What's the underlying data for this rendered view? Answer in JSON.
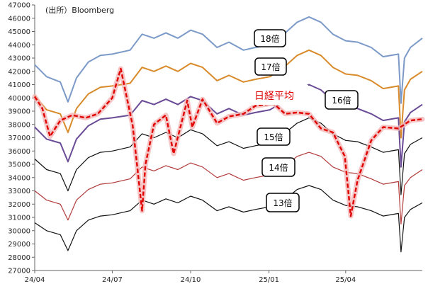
{
  "source": "(出所）Bloomberg",
  "chart_data": {
    "type": "line",
    "title": "",
    "xlabel": "",
    "ylabel": "",
    "ylim": [
      27000,
      47000
    ],
    "yticks": [
      27000,
      28000,
      29000,
      30000,
      31000,
      32000,
      33000,
      34000,
      35000,
      36000,
      37000,
      38000,
      39000,
      40000,
      41000,
      42000,
      43000,
      44000,
      45000,
      46000,
      47000
    ],
    "xlim": [
      "2024-04-01",
      "2025-06-30"
    ],
    "xticks": [
      {
        "label": "24/04",
        "date": "2024-04-01"
      },
      {
        "label": "24/07",
        "date": "2024-07-01"
      },
      {
        "label": "24/10",
        "date": "2024-10-01"
      },
      {
        "label": "25/01",
        "date": "2025-01-01"
      },
      {
        "label": "25/04",
        "date": "2025-04-01"
      }
    ],
    "grid": false,
    "series": [
      {
        "name": "18倍",
        "color": "#7b9ac8",
        "width": 2,
        "x": [
          "2024-04-01",
          "2024-04-15",
          "2024-05-01",
          "2024-05-10",
          "2024-05-20",
          "2024-06-03",
          "2024-06-17",
          "2024-07-01",
          "2024-07-22",
          "2024-08-05",
          "2024-08-19",
          "2024-09-02",
          "2024-09-16",
          "2024-10-01",
          "2024-10-15",
          "2024-11-01",
          "2024-11-15",
          "2024-12-02",
          "2024-12-16",
          "2025-01-02",
          "2025-01-15",
          "2025-02-03",
          "2025-02-17",
          "2025-03-03",
          "2025-03-17",
          "2025-04-01",
          "2025-04-15",
          "2025-05-01",
          "2025-05-15",
          "2025-06-02",
          "2025-06-05",
          "2025-06-09",
          "2025-06-16",
          "2025-06-30"
        ],
        "y": [
          42500,
          41600,
          41200,
          39700,
          41500,
          42700,
          43200,
          43300,
          43600,
          44800,
          44500,
          44900,
          44500,
          45100,
          44800,
          43800,
          44200,
          43600,
          43800,
          44000,
          44600,
          45700,
          46100,
          45700,
          44800,
          44300,
          44200,
          43800,
          43100,
          43300,
          39600,
          43000,
          43800,
          44500
        ]
      },
      {
        "name": "17倍",
        "color": "#d98b2b",
        "width": 2,
        "x": [
          "2024-04-01",
          "2024-04-15",
          "2024-05-01",
          "2024-05-10",
          "2024-05-20",
          "2024-06-03",
          "2024-06-17",
          "2024-07-01",
          "2024-07-22",
          "2024-08-05",
          "2024-08-19",
          "2024-09-02",
          "2024-09-16",
          "2024-10-01",
          "2024-10-15",
          "2024-11-01",
          "2024-11-15",
          "2024-12-02",
          "2024-12-16",
          "2025-01-02",
          "2025-01-15",
          "2025-02-03",
          "2025-02-17",
          "2025-03-03",
          "2025-03-17",
          "2025-04-01",
          "2025-04-15",
          "2025-05-01",
          "2025-05-15",
          "2025-06-02",
          "2025-06-05",
          "2025-06-09",
          "2025-06-16",
          "2025-06-30"
        ],
        "y": [
          40200,
          39100,
          38800,
          37400,
          39200,
          40300,
          40800,
          40900,
          41100,
          42300,
          42000,
          42400,
          42000,
          42600,
          42300,
          41300,
          41700,
          41200,
          41400,
          41600,
          42100,
          43200,
          43600,
          43200,
          42300,
          41800,
          41700,
          41300,
          40700,
          40900,
          37000,
          40600,
          41400,
          42000
        ]
      },
      {
        "name": "16倍",
        "color": "#6a4b96",
        "width": 2,
        "x": [
          "2024-04-01",
          "2024-04-15",
          "2024-05-01",
          "2024-05-10",
          "2024-05-20",
          "2024-06-03",
          "2024-06-17",
          "2024-07-01",
          "2024-07-22",
          "2024-08-05",
          "2024-08-19",
          "2024-09-02",
          "2024-09-16",
          "2024-10-01",
          "2024-10-15",
          "2024-11-01",
          "2024-11-15",
          "2024-12-02",
          "2024-12-16",
          "2025-01-02",
          "2025-01-15",
          "2025-02-03",
          "2025-02-17",
          "2025-03-03",
          "2025-03-17",
          "2025-04-01",
          "2025-04-15",
          "2025-05-01",
          "2025-05-15",
          "2025-06-02",
          "2025-06-05",
          "2025-06-09",
          "2025-06-16",
          "2025-06-30"
        ],
        "y": [
          37800,
          36900,
          36600,
          35200,
          36900,
          37900,
          38400,
          38500,
          38700,
          39800,
          39500,
          39900,
          39500,
          40100,
          39800,
          38800,
          39200,
          38700,
          38900,
          39100,
          39600,
          40600,
          41000,
          40600,
          39800,
          39300,
          39200,
          38800,
          38300,
          38500,
          34800,
          38200,
          38900,
          39500
        ]
      },
      {
        "name": "15倍",
        "color": "#111111",
        "width": 1.2,
        "x": [
          "2024-04-01",
          "2024-04-15",
          "2024-05-01",
          "2024-05-10",
          "2024-05-20",
          "2024-06-03",
          "2024-06-17",
          "2024-07-01",
          "2024-07-22",
          "2024-08-05",
          "2024-08-19",
          "2024-09-02",
          "2024-09-16",
          "2024-10-01",
          "2024-10-15",
          "2024-11-01",
          "2024-11-15",
          "2024-12-02",
          "2024-12-16",
          "2025-01-02",
          "2025-01-15",
          "2025-02-03",
          "2025-02-17",
          "2025-03-03",
          "2025-03-17",
          "2025-04-01",
          "2025-04-15",
          "2025-05-01",
          "2025-05-15",
          "2025-06-02",
          "2025-06-05",
          "2025-06-09",
          "2025-06-16",
          "2025-06-30"
        ],
        "y": [
          35400,
          34600,
          34300,
          33000,
          34600,
          35500,
          35900,
          36000,
          36300,
          37300,
          37000,
          37400,
          37000,
          37600,
          37300,
          36400,
          36700,
          36200,
          36400,
          36600,
          37100,
          38100,
          38500,
          38100,
          37300,
          36800,
          36700,
          36300,
          35900,
          36100,
          32700,
          35800,
          36500,
          37000
        ]
      },
      {
        "name": "14倍",
        "color": "#b23a3a",
        "width": 1.2,
        "x": [
          "2024-04-01",
          "2024-04-15",
          "2024-05-01",
          "2024-05-10",
          "2024-05-20",
          "2024-06-03",
          "2024-06-17",
          "2024-07-01",
          "2024-07-22",
          "2024-08-05",
          "2024-08-19",
          "2024-09-02",
          "2024-09-16",
          "2024-10-01",
          "2024-10-15",
          "2024-11-01",
          "2024-11-15",
          "2024-12-02",
          "2024-12-16",
          "2025-01-02",
          "2025-01-15",
          "2025-02-03",
          "2025-02-17",
          "2025-03-03",
          "2025-03-17",
          "2025-04-01",
          "2025-04-15",
          "2025-05-01",
          "2025-05-15",
          "2025-06-02",
          "2025-06-05",
          "2025-06-09",
          "2025-06-16",
          "2025-06-30"
        ],
        "y": [
          33000,
          32300,
          32000,
          30800,
          32300,
          33100,
          33500,
          33600,
          33900,
          34800,
          34500,
          34900,
          34600,
          35100,
          34800,
          34000,
          34300,
          33800,
          34000,
          34200,
          34600,
          35600,
          35900,
          35600,
          34800,
          34400,
          34300,
          33900,
          33500,
          33700,
          30500,
          33400,
          34000,
          34600
        ]
      },
      {
        "name": "13倍",
        "color": "#111111",
        "width": 1.2,
        "x": [
          "2024-04-01",
          "2024-04-15",
          "2024-05-01",
          "2024-05-10",
          "2024-05-20",
          "2024-06-03",
          "2024-06-17",
          "2024-07-01",
          "2024-07-22",
          "2024-08-05",
          "2024-08-19",
          "2024-09-02",
          "2024-09-16",
          "2024-10-01",
          "2024-10-15",
          "2024-11-01",
          "2024-11-15",
          "2024-12-02",
          "2024-12-16",
          "2025-01-02",
          "2025-01-15",
          "2025-02-03",
          "2025-02-17",
          "2025-03-03",
          "2025-03-17",
          "2025-04-01",
          "2025-04-15",
          "2025-05-01",
          "2025-05-15",
          "2025-06-02",
          "2025-06-05",
          "2025-06-09",
          "2025-06-16",
          "2025-06-30"
        ],
        "y": [
          30600,
          30000,
          29700,
          28500,
          30000,
          30800,
          31100,
          31200,
          31500,
          32300,
          32000,
          32400,
          32100,
          32600,
          32300,
          31500,
          31800,
          31400,
          31600,
          31800,
          32100,
          33100,
          33400,
          33100,
          32300,
          31900,
          31800,
          31500,
          31100,
          31300,
          28400,
          31000,
          31600,
          32100
        ]
      },
      {
        "name": "日経平均",
        "color": "#e00000",
        "width": 2.4,
        "dashed": true,
        "glow": true,
        "x": [
          "2024-04-01",
          "2024-04-10",
          "2024-04-19",
          "2024-05-01",
          "2024-05-15",
          "2024-05-31",
          "2024-06-14",
          "2024-07-01",
          "2024-07-11",
          "2024-07-25",
          "2024-08-05",
          "2024-08-09",
          "2024-08-19",
          "2024-09-02",
          "2024-09-11",
          "2024-09-27",
          "2024-10-03",
          "2024-10-15",
          "2024-11-01",
          "2024-11-15",
          "2024-12-02",
          "2024-12-16",
          "2025-01-06",
          "2025-01-20",
          "2025-02-03",
          "2025-02-17",
          "2025-03-03",
          "2025-03-17",
          "2025-03-31",
          "2025-04-07",
          "2025-04-15",
          "2025-05-01",
          "2025-05-15",
          "2025-06-02",
          "2025-06-16",
          "2025-06-30"
        ],
        "y": [
          40100,
          39200,
          37100,
          38300,
          38700,
          38500,
          38800,
          40000,
          42200,
          37900,
          31500,
          35000,
          38000,
          38700,
          35800,
          39800,
          37800,
          39900,
          38100,
          38600,
          38800,
          39400,
          39600,
          38800,
          38900,
          38800,
          37700,
          37400,
          35600,
          31100,
          33800,
          36800,
          37800,
          37700,
          38300,
          38400
        ]
      }
    ],
    "annotations": [
      "18倍",
      "17倍",
      "16倍",
      "15倍",
      "14倍",
      "13倍",
      "日経平均"
    ]
  }
}
